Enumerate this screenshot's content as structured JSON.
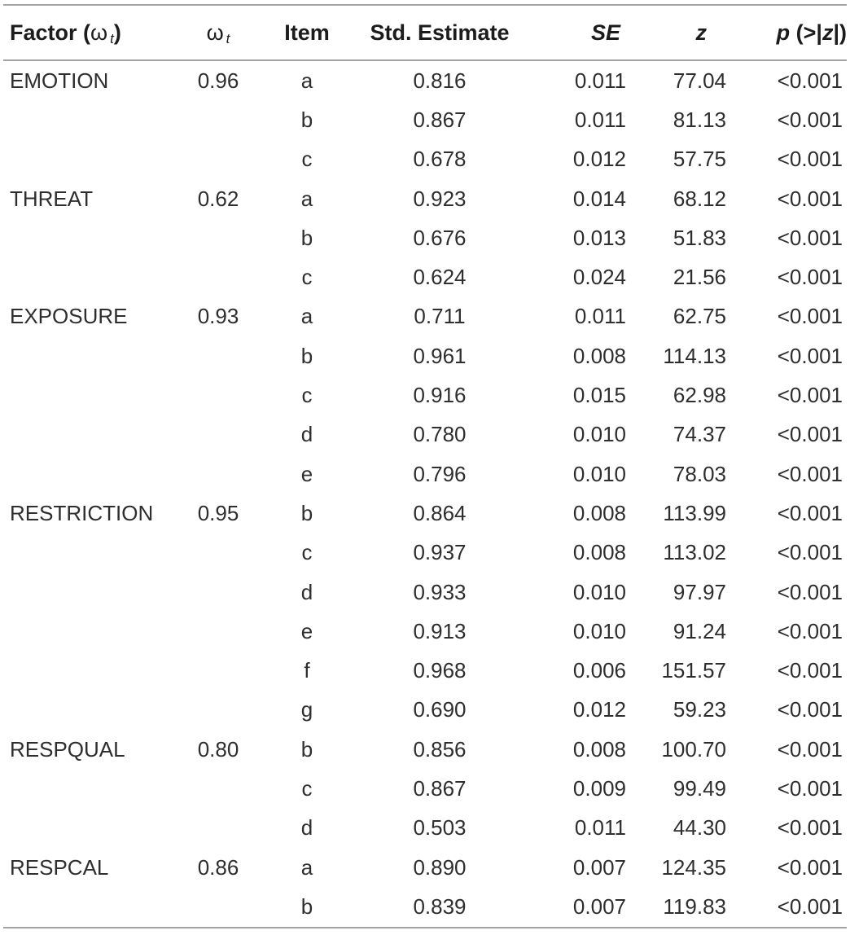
{
  "table": {
    "headers": {
      "factor_prefix": "Factor (",
      "factor_symbol": "ω",
      "factor_sub": "t",
      "factor_suffix": ")",
      "omega_symbol": "ω",
      "omega_sub": "t",
      "item": "Item",
      "std_estimate": "Std. Estimate",
      "se": "SE",
      "z": "z",
      "p_prefix": "p",
      "p_mid": " (>|",
      "p_z": "z",
      "p_suffix": "|)"
    },
    "rows": [
      {
        "factor": "EMOTION",
        "omega": "0.96",
        "item": "a",
        "std_estimate": "0.816",
        "se": "0.011",
        "z": "77.04",
        "p": "<0.001"
      },
      {
        "factor": "",
        "omega": "",
        "item": "b",
        "std_estimate": "0.867",
        "se": "0.011",
        "z": "81.13",
        "p": "<0.001"
      },
      {
        "factor": "",
        "omega": "",
        "item": "c",
        "std_estimate": "0.678",
        "se": "0.012",
        "z": "57.75",
        "p": "<0.001"
      },
      {
        "factor": "THREAT",
        "omega": "0.62",
        "item": "a",
        "std_estimate": "0.923",
        "se": "0.014",
        "z": "68.12",
        "p": "<0.001"
      },
      {
        "factor": "",
        "omega": "",
        "item": "b",
        "std_estimate": "0.676",
        "se": "0.013",
        "z": "51.83",
        "p": "<0.001"
      },
      {
        "factor": "",
        "omega": "",
        "item": "c",
        "std_estimate": "0.624",
        "se": "0.024",
        "z": "21.56",
        "p": "<0.001"
      },
      {
        "factor": "EXPOSURE",
        "omega": "0.93",
        "item": "a",
        "std_estimate": "0.711",
        "se": "0.011",
        "z": "62.75",
        "p": "<0.001"
      },
      {
        "factor": "",
        "omega": "",
        "item": "b",
        "std_estimate": "0.961",
        "se": "0.008",
        "z": "114.13",
        "p": "<0.001"
      },
      {
        "factor": "",
        "omega": "",
        "item": "c",
        "std_estimate": "0.916",
        "se": "0.015",
        "z": "62.98",
        "p": "<0.001"
      },
      {
        "factor": "",
        "omega": "",
        "item": "d",
        "std_estimate": "0.780",
        "se": "0.010",
        "z": "74.37",
        "p": "<0.001"
      },
      {
        "factor": "",
        "omega": "",
        "item": "e",
        "std_estimate": "0.796",
        "se": "0.010",
        "z": "78.03",
        "p": "<0.001"
      },
      {
        "factor": "RESTRICTION",
        "omega": "0.95",
        "item": "b",
        "std_estimate": "0.864",
        "se": "0.008",
        "z": "113.99",
        "p": "<0.001"
      },
      {
        "factor": "",
        "omega": "",
        "item": "c",
        "std_estimate": "0.937",
        "se": "0.008",
        "z": "113.02",
        "p": "<0.001"
      },
      {
        "factor": "",
        "omega": "",
        "item": "d",
        "std_estimate": "0.933",
        "se": "0.010",
        "z": "97.97",
        "p": "<0.001"
      },
      {
        "factor": "",
        "omega": "",
        "item": "e",
        "std_estimate": "0.913",
        "se": "0.010",
        "z": "91.24",
        "p": "<0.001"
      },
      {
        "factor": "",
        "omega": "",
        "item": "f",
        "std_estimate": "0.968",
        "se": "0.006",
        "z": "151.57",
        "p": "<0.001"
      },
      {
        "factor": "",
        "omega": "",
        "item": "g",
        "std_estimate": "0.690",
        "se": "0.012",
        "z": "59.23",
        "p": "<0.001"
      },
      {
        "factor": "RESPQUAL",
        "omega": "0.80",
        "item": "b",
        "std_estimate": "0.856",
        "se": "0.008",
        "z": "100.70",
        "p": "<0.001"
      },
      {
        "factor": "",
        "omega": "",
        "item": "c",
        "std_estimate": "0.867",
        "se": "0.009",
        "z": "99.49",
        "p": "<0.001"
      },
      {
        "factor": "",
        "omega": "",
        "item": "d",
        "std_estimate": "0.503",
        "se": "0.011",
        "z": "44.30",
        "p": "<0.001"
      },
      {
        "factor": "RESPCAL",
        "omega": "0.86",
        "item": "a",
        "std_estimate": "0.890",
        "se": "0.007",
        "z": "124.35",
        "p": "<0.001"
      },
      {
        "factor": "",
        "omega": "",
        "item": "b",
        "std_estimate": "0.839",
        "se": "0.007",
        "z": "119.83",
        "p": "<0.001"
      }
    ]
  },
  "colors": {
    "rule": "#a3a3a3",
    "header_text": "#1c1c1c",
    "body_text": "#2e2e2e",
    "background": "#ffffff"
  }
}
